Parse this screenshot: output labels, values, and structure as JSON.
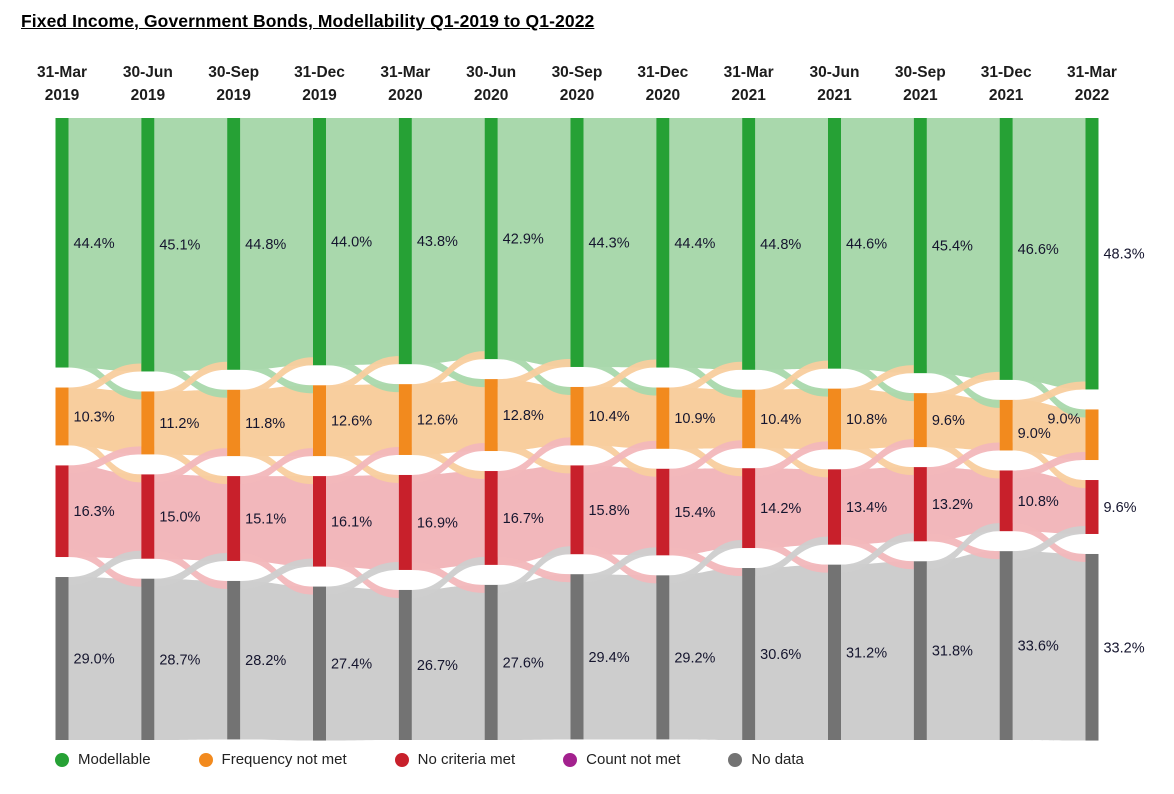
{
  "title": "Fixed Income, Government Bonds, Modellability Q1-2019 to Q1-2022",
  "chart_data": {
    "type": "sankey",
    "title": "Fixed Income, Government Bonds, Modellability Q1-2019 to Q1-2022",
    "categories": [
      "31-Mar 2019",
      "30-Jun 2019",
      "30-Sep 2019",
      "31-Dec 2019",
      "31-Mar 2020",
      "30-Jun 2020",
      "30-Sep 2020",
      "31-Dec 2020",
      "31-Mar 2021",
      "30-Jun 2021",
      "30-Sep 2021",
      "31-Dec 2021",
      "31-Mar 2022"
    ],
    "value_unit": "%",
    "series": [
      {
        "name": "Modellable",
        "color": "#26A135",
        "flow_color": "#A9D8AC",
        "values": [
          44.4,
          45.1,
          44.8,
          44.0,
          43.8,
          42.9,
          44.3,
          44.4,
          44.8,
          44.6,
          45.4,
          46.6,
          48.3
        ]
      },
      {
        "name": "Frequency not met",
        "color": "#F28A1E",
        "flow_color": "#F8CE9E",
        "values": [
          10.3,
          11.2,
          11.8,
          12.6,
          12.6,
          12.8,
          10.4,
          10.9,
          10.4,
          10.8,
          9.6,
          9.0,
          9.0
        ]
      },
      {
        "name": "No criteria met",
        "color": "#C8202B",
        "flow_color": "#F2B7BB",
        "values": [
          16.3,
          15.0,
          15.1,
          16.1,
          16.9,
          16.7,
          15.8,
          15.4,
          14.2,
          13.4,
          13.2,
          10.8,
          9.6
        ]
      },
      {
        "name": "No data",
        "color": "#737373",
        "flow_color": "#CDCDCD",
        "values": [
          29.0,
          28.7,
          28.2,
          27.4,
          26.7,
          27.6,
          29.4,
          29.2,
          30.6,
          31.2,
          31.8,
          33.6,
          33.2
        ]
      }
    ],
    "legend": [
      {
        "label": "Modellable",
        "color": "#26A135"
      },
      {
        "label": "Frequency not met",
        "color": "#F28A1E"
      },
      {
        "label": "No criteria met",
        "color": "#C8202B"
      },
      {
        "label": "Count not met",
        "color": "#A3218E"
      },
      {
        "label": "No data",
        "color": "#737373"
      }
    ],
    "legend_position": "bottom"
  }
}
